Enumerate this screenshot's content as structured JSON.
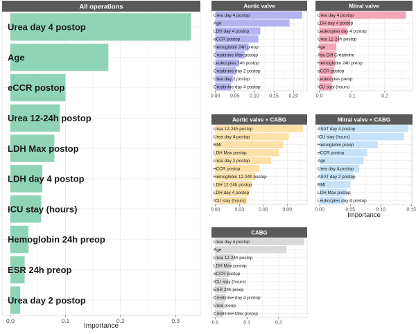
{
  "colors": {
    "strip_bg": "#5a5a5a",
    "strip_text": "#ffffff",
    "panel_bg": "#ffffff",
    "grid": "#e3e3e3",
    "axis_text": "#4d4d4d",
    "label_text": "#1a1a1a"
  },
  "xlabel": "Importance",
  "chart_data": [
    {
      "type": "bar",
      "orientation": "horizontal",
      "title": "All operations",
      "color": "#8fd4b7",
      "categories": [
        "Urea day 4 postop",
        "Age",
        "eCCR postop",
        "Urea 12-24h postop",
        "LDH Max postop",
        "LDH day 4 postop",
        "ICU stay (hours)",
        "Hemoglobin 24h preop",
        "ESR 24h preop",
        "Urea day 2 postop"
      ],
      "values": [
        0.328,
        0.178,
        0.1,
        0.09,
        0.08,
        0.058,
        0.056,
        0.033,
        0.026,
        0.018
      ],
      "xlim": [
        -0.015,
        0.345
      ],
      "ticks": [
        0.0,
        0.1,
        0.2,
        0.3
      ],
      "tick_labels": [
        "0.0",
        "0.1",
        "0.2",
        "0.3"
      ],
      "xlabel": "Importance",
      "grid": true
    },
    {
      "type": "bar",
      "orientation": "horizontal",
      "title": "Aortic valve",
      "color": "#b3b3ee",
      "categories": [
        "Urea day 4 postop",
        "Age",
        "LDH day 4 postop",
        "eCCR postop",
        "Hemoglobin 24h preop",
        "Creatinine Max postop",
        "Leukocytes 24h postop",
        "Creatinine day 2 postop",
        "Urea day 2 postop",
        "Creatinine day 4 postop"
      ],
      "values": [
        0.222,
        0.19,
        0.115,
        0.11,
        0.085,
        0.075,
        0.06,
        0.052,
        0.045,
        0.04
      ],
      "xlim": [
        -0.01,
        0.235
      ],
      "ticks": [
        0.0,
        0.05,
        0.1,
        0.15,
        0.2
      ],
      "tick_labels": [
        "0.00",
        "0.05",
        "0.10",
        "0.15",
        "0.20"
      ],
      "xlabel": "",
      "grid": true
    },
    {
      "type": "bar",
      "orientation": "horizontal",
      "title": "Mitral valve",
      "color": "#f2a6b8",
      "categories": [
        "Urea day 4 postop",
        "LDH day 4 postop",
        "Leukocytes day 4 postop",
        "Urea 12-24h postop",
        "Age",
        "Abs Diff Creatinine",
        "Hemoglobin 24h preop",
        "eCCR postop",
        "Leukocytes preop",
        "ICU stay (hours)"
      ],
      "values": [
        0.265,
        0.095,
        0.085,
        0.06,
        0.052,
        0.05,
        0.048,
        0.045,
        0.04,
        0.038
      ],
      "xlim": [
        -0.012,
        0.285
      ],
      "ticks": [
        0.0,
        0.1,
        0.2
      ],
      "tick_labels": [
        "0.0",
        "0.1",
        "0.2"
      ],
      "xlabel": "",
      "grid": true
    },
    {
      "type": "bar",
      "orientation": "horizontal",
      "title": "Aortic valve + CABG",
      "color": "#fde0a8",
      "categories": [
        "Urea 12-24h postop",
        "Urea day 4 postop",
        "BMI",
        "LDH Max postop",
        "Urea day 2 postop",
        "eCCR postop",
        "Hemoglobin 12-24h postop",
        "LDH 12-24h postop",
        "LDH day 4 postop",
        "ICU stay (hours)"
      ],
      "values": [
        0.11,
        0.092,
        0.085,
        0.08,
        0.07,
        0.055,
        0.05,
        0.045,
        0.042,
        0.04
      ],
      "xlim": [
        -0.005,
        0.115
      ],
      "ticks": [
        0.0,
        0.03,
        0.06,
        0.09
      ],
      "tick_labels": [
        "0.00",
        "0.03",
        "0.06",
        "0.09"
      ],
      "xlabel": "",
      "grid": true
    },
    {
      "type": "bar",
      "orientation": "horizontal",
      "title": "Mitral valve + CABG",
      "color": "#c6e2fa",
      "categories": [
        "ASAT day 4 postop",
        "ICU stay (hours)",
        "Hemoglobin preop",
        "eCCR postop",
        "Age",
        "Urea day 4 postop",
        "ASAT day 2 postop",
        "BMI",
        "LDH Max postop",
        "Leukocytes day 4 postop"
      ],
      "values": [
        0.145,
        0.138,
        0.095,
        0.078,
        0.072,
        0.065,
        0.055,
        0.05,
        0.045,
        0.04
      ],
      "xlim": [
        -0.007,
        0.152
      ],
      "ticks": [
        0.0,
        0.05,
        0.1,
        0.15
      ],
      "tick_labels": [
        "0.00",
        "0.05",
        "0.10",
        "0.15"
      ],
      "xlabel": "Importance",
      "grid": true
    },
    {
      "type": "bar",
      "orientation": "horizontal",
      "title": "CABG",
      "color": "#d9d9d9",
      "categories": [
        "Urea day 4 postop",
        "Age",
        "Urea 12-24h postop",
        "LDH Max postop",
        "eCCR postop",
        "ICU stay (hours)",
        "ESR 24h preop",
        "Creatinine day 4 postop",
        "Urea preop",
        "Creatinine Max postop"
      ],
      "values": [
        0.28,
        0.225,
        0.06,
        0.05,
        0.045,
        0.04,
        0.035,
        0.032,
        0.028,
        0.025
      ],
      "xlim": [
        -0.012,
        0.29
      ],
      "ticks": [
        0.0,
        0.1,
        0.2
      ],
      "tick_labels": [
        "0.0",
        "0.1",
        "0.2"
      ],
      "xlabel": "",
      "grid": true
    }
  ]
}
